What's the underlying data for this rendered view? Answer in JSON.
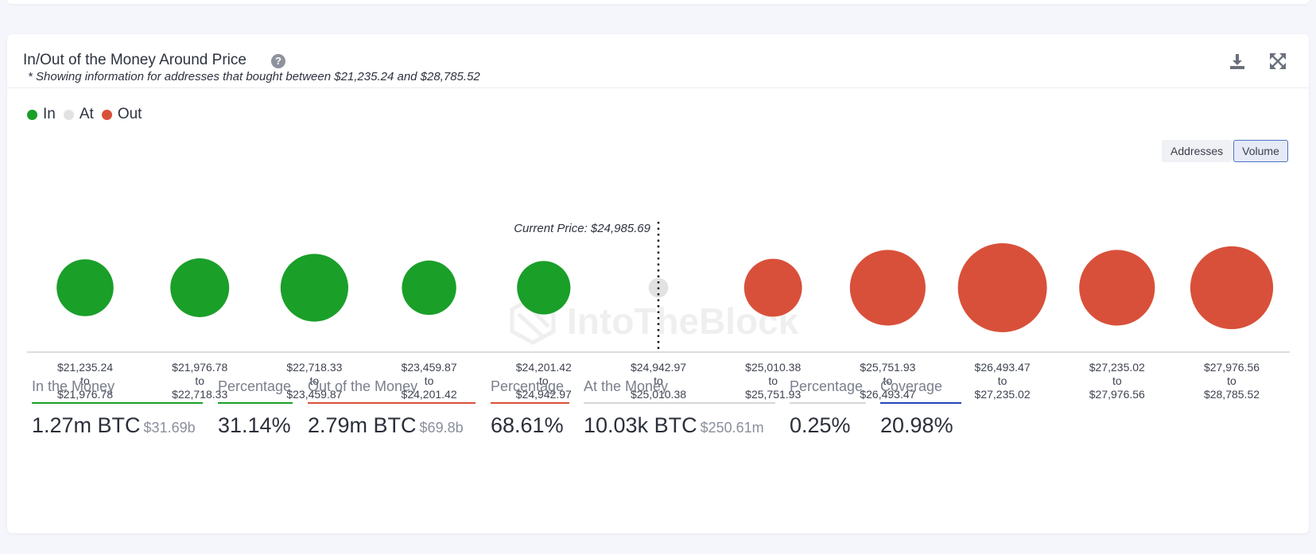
{
  "header": {
    "title": "In/Out of the Money Around Price",
    "help_icon": "question-circle-icon",
    "download_icon": "download-icon",
    "expand_icon": "expand-icon"
  },
  "note": "* Showing information for addresses that bought between $21,235.24 and $28,785.52",
  "legend": [
    {
      "label": "In",
      "color": "#1a9f29"
    },
    {
      "label": "At",
      "color": "#e2e2e2"
    },
    {
      "label": "Out",
      "color": "#d8503a"
    }
  ],
  "toggle": {
    "addresses": "Addresses",
    "volume": "Volume",
    "selected": "Volume"
  },
  "watermark": "IntoTheBlock",
  "chart_data": {
    "type": "bubble",
    "current_price_label": "Current Price: $24,985.69",
    "current_price_index": 5,
    "clusters": [
      {
        "from": "$21,235.24",
        "to_word": "to",
        "to": "$21,976.78",
        "status": "in",
        "relative_size": 0.64
      },
      {
        "from": "$21,976.78",
        "to_word": "to",
        "to": "$22,718.33",
        "status": "in",
        "relative_size": 0.66
      },
      {
        "from": "$22,718.33",
        "to_word": "to",
        "to": "$23,459.87",
        "status": "in",
        "relative_size": 0.76
      },
      {
        "from": "$23,459.87",
        "to_word": "to",
        "to": "$24,201.42",
        "status": "in",
        "relative_size": 0.61
      },
      {
        "from": "$24,201.42",
        "to_word": "to",
        "to": "$24,942.97",
        "status": "in",
        "relative_size": 0.6
      },
      {
        "from": "$24,942.97",
        "to_word": "to",
        "to": "$25,010.38",
        "status": "at",
        "relative_size": 0.22
      },
      {
        "from": "$25,010.38",
        "to_word": "to",
        "to": "$25,751.93",
        "status": "out",
        "relative_size": 0.65
      },
      {
        "from": "$25,751.93",
        "to_word": "to",
        "to": "$26,493.47",
        "status": "out",
        "relative_size": 0.85
      },
      {
        "from": "$26,493.47",
        "to_word": "to",
        "to": "$27,235.02",
        "status": "out",
        "relative_size": 1.0
      },
      {
        "from": "$27,235.02",
        "to_word": "to",
        "to": "$27,976.56",
        "status": "out",
        "relative_size": 0.85
      },
      {
        "from": "$27,976.56",
        "to_word": "to",
        "to": "$28,785.52",
        "status": "out",
        "relative_size": 0.93
      }
    ]
  },
  "stats": [
    {
      "label": "In the Money",
      "value": "1.27m BTC",
      "sub": "$31.69b",
      "color": "#1a9f29"
    },
    {
      "label": "Percentage",
      "value": "31.14%",
      "sub": "",
      "color": "#1a9f29"
    },
    {
      "label": "Out of the Money",
      "value": "2.79m BTC",
      "sub": "$69.8b",
      "color": "#d8503a"
    },
    {
      "label": "Percentage",
      "value": "68.61%",
      "sub": "",
      "color": "#d8503a"
    },
    {
      "label": "At the Money",
      "value": "10.03k BTC",
      "sub": "$250.61m",
      "color": "#d6d6d6"
    },
    {
      "label": "Percentage",
      "value": "0.25%",
      "sub": "",
      "color": "#d6d6d6"
    },
    {
      "label": "Coverage",
      "value": "20.98%",
      "sub": "",
      "color": "#2446b8"
    }
  ]
}
